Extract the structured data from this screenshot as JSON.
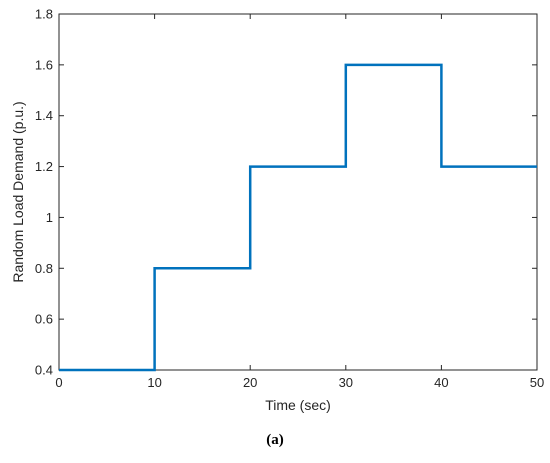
{
  "chart_data": {
    "type": "line",
    "step": true,
    "xlabel": "Time (sec)",
    "ylabel": "Random Load Demand (p.u.)",
    "xlim": [
      0,
      50
    ],
    "ylim": [
      0.4,
      1.8
    ],
    "xticks": [
      0,
      10,
      20,
      30,
      40,
      50
    ],
    "xtick_labels": [
      "0",
      "10",
      "20",
      "30",
      "40",
      "50"
    ],
    "yticks": [
      0.4,
      0.6,
      0.8,
      1.0,
      1.2,
      1.4,
      1.6,
      1.8
    ],
    "ytick_labels": [
      "0.4",
      "0.6",
      "0.8",
      "1",
      "1.2",
      "1.4",
      "1.6",
      "1.8"
    ],
    "grid": false,
    "series": [
      {
        "color": "#0072BD",
        "x": [
          0,
          10,
          10,
          20,
          20,
          30,
          30,
          40,
          40,
          50
        ],
        "y": [
          0.4,
          0.4,
          0.8,
          0.8,
          1.2,
          1.2,
          1.6,
          1.6,
          1.2,
          1.2
        ]
      }
    ]
  },
  "caption": "(a)",
  "colors": {
    "series": "#0072BD",
    "axes": "#262626",
    "background": "#ffffff"
  }
}
